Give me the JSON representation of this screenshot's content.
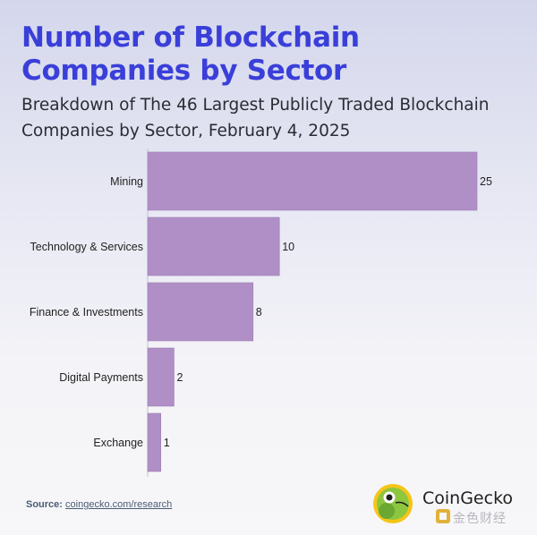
{
  "header": {
    "title": "Number of Blockchain Companies by Sector",
    "subtitle": "Breakdown of The 46 Largest Publicly Traded Blockchain Companies by Sector, February 4, 2025"
  },
  "chart_data": {
    "type": "bar",
    "orientation": "horizontal",
    "categories": [
      "Mining",
      "Technology & Services",
      "Finance & Investments",
      "Digital Payments",
      "Exchange"
    ],
    "values": [
      25,
      10,
      8,
      2,
      1
    ],
    "title": "Number of Blockchain Companies by Sector",
    "xlabel": "",
    "ylabel": "",
    "xlim": [
      0,
      25
    ],
    "grid": false,
    "legend": "none",
    "bar_color": "#b08fc6",
    "bar_edge_color": "#9c7db4"
  },
  "footer": {
    "source_label": "Source:",
    "source_link": "coingecko.com/research",
    "brand_name": "CoinGecko",
    "watermark": "金色财经",
    "brand_colors": {
      "gecko_green": "#8dc63f",
      "gecko_yellow": "#f5c518",
      "watermark_gold": "#e0b23a"
    }
  }
}
